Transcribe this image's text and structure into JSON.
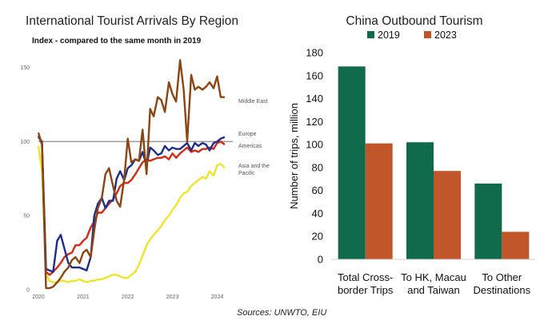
{
  "chart_data": [
    {
      "type": "line",
      "title": "International Tourist Arrivals By Region",
      "subtitle": "Index - compared to the same month in 2019",
      "y_ticks": [
        0,
        50,
        100,
        150
      ],
      "ylim": [
        0,
        160
      ],
      "x_ticks": [
        "2020",
        "2021",
        "2022",
        "2023",
        "2024"
      ],
      "x_range": [
        2020.0,
        2024.35
      ],
      "reference_line": 100,
      "colors": {
        "middle_east": "#8B4513",
        "europe": "#1f2d8a",
        "americas": "#d42a14",
        "asia_pacific": "#f0e21c",
        "reference": "#9a9a9a"
      },
      "series": [
        {
          "name": "Middle East",
          "key": "middle_east",
          "x": [
            2020.0,
            2020.08,
            2020.17,
            2020.25,
            2020.33,
            2020.42,
            2020.5,
            2020.58,
            2020.67,
            2020.75,
            2020.83,
            2020.92,
            2021.0,
            2021.08,
            2021.17,
            2021.25,
            2021.33,
            2021.42,
            2021.5,
            2021.58,
            2021.67,
            2021.75,
            2021.83,
            2021.92,
            2022.0,
            2022.08,
            2022.17,
            2022.25,
            2022.33,
            2022.42,
            2022.5,
            2022.58,
            2022.67,
            2022.75,
            2022.83,
            2022.92,
            2023.0,
            2023.08,
            2023.17,
            2023.25,
            2023.33,
            2023.42,
            2023.5,
            2023.58,
            2023.67,
            2023.75,
            2023.83,
            2023.92,
            2024.0,
            2024.08,
            2024.17
          ],
          "values": [
            106,
            98,
            1,
            1,
            2,
            5,
            8,
            12,
            15,
            20,
            22,
            18,
            25,
            27,
            22,
            40,
            55,
            62,
            78,
            82,
            70,
            60,
            56,
            75,
            102,
            86,
            88,
            87,
            108,
            78,
            122,
            117,
            130,
            128,
            120,
            140,
            132,
            127,
            155,
            135,
            100,
            145,
            135,
            137,
            135,
            137,
            140,
            136,
            144,
            130,
            130
          ]
        },
        {
          "name": "Europe",
          "key": "europe",
          "x": [
            2020.0,
            2020.08,
            2020.17,
            2020.25,
            2020.33,
            2020.42,
            2020.5,
            2020.58,
            2020.67,
            2020.75,
            2020.83,
            2020.92,
            2021.0,
            2021.08,
            2021.17,
            2021.25,
            2021.33,
            2021.42,
            2021.5,
            2021.58,
            2021.67,
            2021.75,
            2021.83,
            2021.92,
            2022.0,
            2022.08,
            2022.17,
            2022.25,
            2022.33,
            2022.42,
            2022.5,
            2022.58,
            2022.67,
            2022.75,
            2022.83,
            2022.92,
            2023.0,
            2023.08,
            2023.17,
            2023.25,
            2023.33,
            2023.42,
            2023.5,
            2023.58,
            2023.67,
            2023.75,
            2023.83,
            2023.92,
            2024.0,
            2024.08,
            2024.17
          ],
          "values": [
            103,
            100,
            14,
            13,
            12,
            33,
            37,
            28,
            18,
            15,
            15,
            15,
            14,
            13,
            22,
            50,
            58,
            62,
            55,
            60,
            60,
            75,
            80,
            74,
            82,
            84,
            88,
            87,
            93,
            84,
            96,
            94,
            91,
            92,
            97,
            94,
            96,
            95,
            95,
            97,
            99,
            94,
            99,
            97,
            99,
            98,
            94,
            99,
            100,
            102,
            103
          ]
        },
        {
          "name": "Americas",
          "key": "americas",
          "x": [
            2020.0,
            2020.08,
            2020.17,
            2020.25,
            2020.33,
            2020.42,
            2020.5,
            2020.58,
            2020.67,
            2020.75,
            2020.83,
            2020.92,
            2021.0,
            2021.08,
            2021.17,
            2021.25,
            2021.33,
            2021.42,
            2021.5,
            2021.58,
            2021.67,
            2021.75,
            2021.83,
            2021.92,
            2022.0,
            2022.08,
            2022.17,
            2022.25,
            2022.33,
            2022.42,
            2022.5,
            2022.58,
            2022.67,
            2022.75,
            2022.83,
            2022.92,
            2023.0,
            2023.08,
            2023.17,
            2023.25,
            2023.33,
            2023.42,
            2023.5,
            2023.58,
            2023.67,
            2023.75,
            2023.83,
            2023.92,
            2024.0,
            2024.08,
            2024.17
          ],
          "values": [
            104,
            98,
            12,
            10,
            12,
            15,
            18,
            22,
            24,
            25,
            30,
            30,
            33,
            35,
            42,
            46,
            52,
            52,
            55,
            58,
            61,
            65,
            70,
            72,
            72,
            74,
            78,
            82,
            86,
            88,
            87,
            88,
            89,
            89,
            90,
            88,
            92,
            89,
            92,
            94,
            96,
            93,
            94,
            93,
            95,
            95,
            96,
            95,
            99,
            100,
            98
          ]
        },
        {
          "name": "Asia and the Pacific",
          "key": "asia_pacific",
          "x": [
            2020.0,
            2020.08,
            2020.17,
            2020.25,
            2020.33,
            2020.42,
            2020.5,
            2020.58,
            2020.67,
            2020.75,
            2020.83,
            2020.92,
            2021.0,
            2021.08,
            2021.17,
            2021.25,
            2021.33,
            2021.42,
            2021.5,
            2021.58,
            2021.67,
            2021.75,
            2021.83,
            2021.92,
            2022.0,
            2022.08,
            2022.17,
            2022.25,
            2022.33,
            2022.42,
            2022.5,
            2022.58,
            2022.67,
            2022.75,
            2022.83,
            2022.92,
            2023.0,
            2023.08,
            2023.17,
            2023.25,
            2023.33,
            2023.42,
            2023.5,
            2023.58,
            2023.67,
            2023.75,
            2023.83,
            2023.92,
            2024.0,
            2024.08,
            2024.17
          ],
          "values": [
            97,
            80,
            10,
            6,
            5,
            5,
            6,
            6,
            5,
            6,
            6,
            7,
            6,
            5,
            6,
            6,
            7,
            7,
            8,
            9,
            10,
            10,
            9,
            8,
            8,
            10,
            12,
            17,
            23,
            30,
            34,
            37,
            40,
            43,
            47,
            50,
            54,
            57,
            62,
            65,
            66,
            70,
            72,
            74,
            76,
            75,
            80,
            77,
            84,
            85,
            82
          ]
        }
      ],
      "region_labels": {
        "middle_east": [
          "Middle East"
        ],
        "europe": [
          "Europe"
        ],
        "americas": [
          "Americas"
        ],
        "asia_pacific": [
          "Asia and the",
          "Pacific"
        ]
      }
    },
    {
      "type": "bar",
      "title": "China Outbound Tourism",
      "ylabel": "Number of trips, million",
      "xlabel": "",
      "ylim": [
        0,
        180
      ],
      "y_ticks": [
        0,
        20,
        40,
        60,
        80,
        100,
        120,
        140,
        160,
        180
      ],
      "categories": [
        [
          "Total Cross-",
          "border Trips"
        ],
        [
          "To HK, Macau",
          "and Taiwan"
        ],
        [
          "To Other",
          "Destinations"
        ]
      ],
      "series": [
        {
          "name": "2019",
          "color": "#0f6b4b",
          "values": [
            168,
            102,
            66
          ]
        },
        {
          "name": "2023",
          "color": "#c0562a",
          "values": [
            101,
            77,
            24
          ]
        }
      ],
      "legend_position": "top"
    }
  ],
  "source_text": "Sources: UNWTO, EIU"
}
